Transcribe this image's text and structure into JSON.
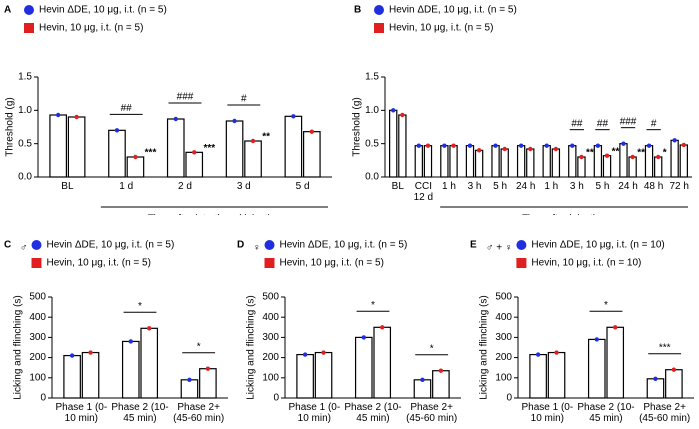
{
  "chart_data": [
    {
      "type": "bar",
      "panel": "A",
      "ylabel": "Threshold (g)",
      "xlabel": "Time after intrathecal injection",
      "categories": [
        "BL",
        "1 d",
        "2 d",
        "3 d",
        "5 d"
      ],
      "series": [
        {
          "name": "Hevin ΔDE, 10 μg, i.t. (n = 5)",
          "color": "#1f2fe0",
          "values": [
            0.93,
            0.7,
            0.87,
            0.84,
            0.91
          ]
        },
        {
          "name": "Hevin, 10 μg, i.t. (n = 5)",
          "color": "#e02020",
          "values": [
            0.9,
            0.3,
            0.37,
            0.54,
            0.68
          ]
        }
      ],
      "ylim": [
        0,
        1.5
      ],
      "yticks": [
        {
          "value": 0,
          "label": "0.0"
        },
        {
          "value": 0.5,
          "label": "0.5"
        },
        {
          "value": 1,
          "label": "1.0"
        },
        {
          "value": 1.5,
          "label": "1.5"
        }
      ],
      "significance": {
        "between": [
          null,
          "##",
          "###",
          "#",
          null
        ],
        "vs_baseline": [
          null,
          "***",
          "***",
          "**",
          null
        ]
      }
    },
    {
      "type": "bar",
      "panel": "B",
      "ylabel": "Threshold (g)",
      "xlabel": "Time after injection",
      "categories": [
        "BL",
        "CCI 12 d",
        "1 h",
        "3 h",
        "5 h",
        "24 h",
        "1 h",
        "3 h",
        "5 h",
        "24 h",
        "48 h",
        "72 h"
      ],
      "series": [
        {
          "name": "Hevin ΔDE, 10 μg, i.t. (n = 5)",
          "color": "#1f2fe0",
          "values": [
            1.0,
            0.47,
            0.47,
            0.47,
            0.47,
            0.47,
            0.47,
            0.47,
            0.47,
            0.5,
            0.47,
            0.55
          ]
        },
        {
          "name": "Hevin, 10 μg, i.t. (n = 5)",
          "color": "#e02020",
          "values": [
            0.93,
            0.47,
            0.47,
            0.4,
            0.42,
            0.42,
            0.42,
            0.3,
            0.32,
            0.3,
            0.3,
            0.48
          ]
        }
      ],
      "ylim": [
        0,
        1.5
      ],
      "yticks": [
        {
          "value": 0,
          "label": "0.0"
        },
        {
          "value": 0.5,
          "label": "0.5"
        },
        {
          "value": 1,
          "label": "1.0"
        },
        {
          "value": 1.5,
          "label": "1.5"
        }
      ],
      "significance": {
        "between": [
          null,
          null,
          null,
          null,
          null,
          null,
          null,
          "##",
          "##",
          "###",
          "#",
          null
        ],
        "vs_baseline": [
          null,
          null,
          null,
          null,
          null,
          null,
          null,
          "**",
          "**",
          "**",
          "*",
          null
        ]
      }
    },
    {
      "type": "bar",
      "panel": "C",
      "symbol": "♂",
      "ylabel": "Licking and flinching (s)",
      "categories": [
        "Phase 1 (0-10 min)",
        "Phase 2 (10-45 min)",
        "Phase 2+ (45-60 min)"
      ],
      "series": [
        {
          "name": "Hevin ΔDE, 10 μg, i.t. (n = 5)",
          "color": "#1f2fe0",
          "values": [
            210,
            280,
            90
          ]
        },
        {
          "name": "Hevin, 10 μg, i.t. (n = 5)",
          "color": "#e02020",
          "values": [
            225,
            345,
            145
          ]
        }
      ],
      "ylim": [
        0,
        500
      ],
      "yticks": [
        0,
        100,
        200,
        300,
        400,
        500
      ],
      "significance": {
        "between": [
          null,
          "*",
          "*"
        ]
      }
    },
    {
      "type": "bar",
      "panel": "D",
      "symbol": "♀",
      "ylabel": "Licking and flinching (s)",
      "categories": [
        "Phase 1 (0-10 min)",
        "Phase 2 (10-45 min)",
        "Phase 2+ (45-60 min)"
      ],
      "series": [
        {
          "name": "Hevin ΔDE, 10 μg, i.t. (n = 5)",
          "color": "#1f2fe0",
          "values": [
            215,
            300,
            90
          ]
        },
        {
          "name": "Hevin, 10 μg, i.t. (n = 5)",
          "color": "#e02020",
          "values": [
            225,
            350,
            135
          ]
        }
      ],
      "ylim": [
        0,
        500
      ],
      "yticks": [
        0,
        100,
        200,
        300,
        400,
        500
      ],
      "significance": {
        "between": [
          null,
          "*",
          "*"
        ]
      }
    },
    {
      "type": "bar",
      "panel": "E",
      "symbol": "♂ + ♀",
      "ylabel": "Licking and flinching (s)",
      "categories": [
        "Phase 1 (0-10 min)",
        "Phase 2 (10-45 min)",
        "Phase 2+ (45-60 min)"
      ],
      "series": [
        {
          "name": "Hevin ΔDE, 10 μg, i.t. (n = 10)",
          "color": "#1f2fe0",
          "values": [
            215,
            290,
            95
          ]
        },
        {
          "name": "Hevin, 10 μg, i.t. (n = 10)",
          "color": "#e02020",
          "values": [
            225,
            350,
            140
          ]
        }
      ],
      "ylim": [
        0,
        500
      ],
      "yticks": [
        0,
        100,
        200,
        300,
        400,
        500
      ],
      "significance": {
        "between": [
          null,
          "*",
          "***"
        ]
      }
    }
  ]
}
